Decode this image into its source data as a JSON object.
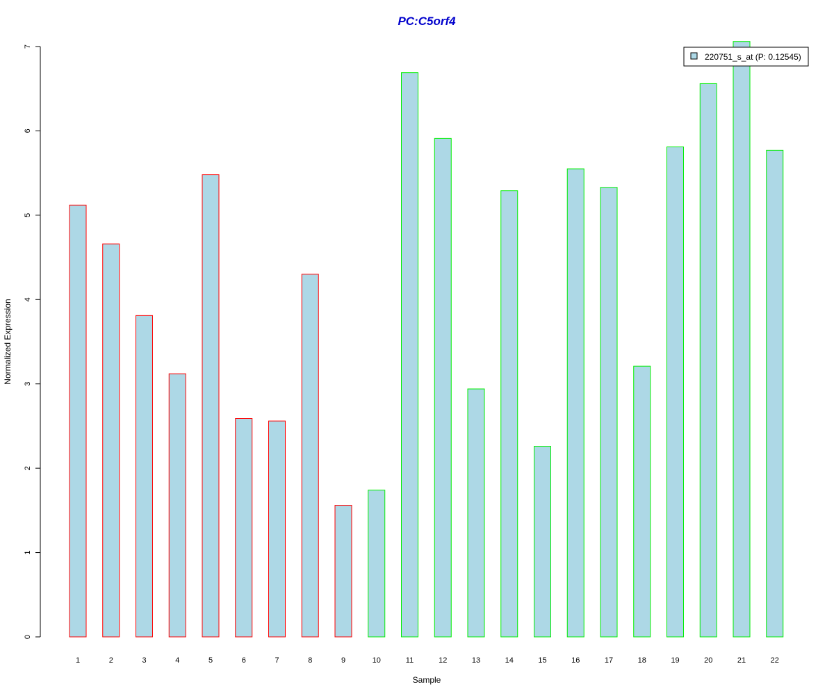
{
  "chart_data": {
    "type": "bar",
    "title": "PC:C5orf4",
    "xlabel": "Sample",
    "ylabel": "Normalized Expression",
    "categories": [
      "1",
      "2",
      "3",
      "4",
      "5",
      "6",
      "7",
      "8",
      "9",
      "10",
      "11",
      "12",
      "13",
      "14",
      "15",
      "16",
      "17",
      "18",
      "19",
      "20",
      "21",
      "22"
    ],
    "yticks": [
      "0",
      "1",
      "2",
      "3",
      "4",
      "5",
      "6",
      "7"
    ],
    "ylim": [
      0,
      7
    ],
    "series": [
      {
        "name": "220751_s_at (P: 0.12545)",
        "values": [
          5.12,
          4.66,
          3.81,
          3.12,
          5.48,
          2.59,
          2.56,
          4.3,
          1.56,
          1.74,
          6.69,
          5.91,
          2.94,
          5.29,
          2.26,
          5.55,
          5.33,
          3.21,
          5.81,
          6.56,
          7.06,
          5.77
        ]
      }
    ],
    "groups": [
      {
        "samples": [
          1,
          9
        ],
        "border_color": "#ff0000"
      },
      {
        "samples": [
          10,
          22
        ],
        "border_color": "#00ee00"
      }
    ],
    "fill_color": "#add8e6",
    "title_color": "#0000cc",
    "legend_position": "top-right",
    "grid": false
  }
}
